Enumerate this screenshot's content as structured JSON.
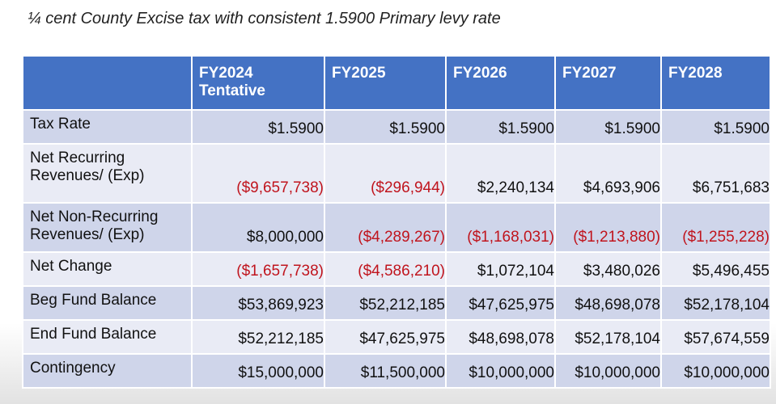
{
  "title": "¼ cent County Excise tax with consistent 1.5900 Primary levy rate",
  "table": {
    "headers": [
      "",
      "FY2024\nTentative",
      "FY2025",
      "FY2026",
      "FY2027",
      "FY2028"
    ],
    "rows": [
      {
        "label": "Tax Rate",
        "values": [
          "$1.5900",
          "$1.5900",
          "$1.5900",
          "$1.5900",
          "$1.5900"
        ]
      },
      {
        "label": "Net Recurring Revenues/ (Exp)",
        "values": [
          "($9,657,738)",
          "($296,944)",
          "$2,240,134",
          "$4,693,906",
          "$6,751,683"
        ]
      },
      {
        "label": "Net Non-Recurring Revenues/ (Exp)",
        "values": [
          "$8,000,000",
          "($4,289,267)",
          "($1,168,031)",
          "($1,213,880)",
          "($1,255,228)"
        ]
      },
      {
        "label": "Net Change",
        "values": [
          "($1,657,738)",
          "($4,586,210)",
          "$1,072,104",
          "$3,480,026",
          "$5,496,455"
        ]
      },
      {
        "label": "Beg Fund Balance",
        "values": [
          "$53,869,923",
          "$52,212,185",
          "$47,625,975",
          "$48,698,078",
          "$52,178,104"
        ]
      },
      {
        "label": "End Fund Balance",
        "values": [
          "$52,212,185",
          "$47,625,975",
          "$48,698,078",
          "$52,178,104",
          "$57,674,559"
        ]
      },
      {
        "label": "Contingency",
        "values": [
          "$15,000,000",
          "$11,500,000",
          "$10,000,000",
          "$10,000,000",
          "$10,000,000"
        ]
      }
    ]
  },
  "colors": {
    "header_bg": "#4472c4",
    "negative": "#c0141d",
    "row_odd": "#cfd5ea",
    "row_even": "#e9ebf5"
  }
}
